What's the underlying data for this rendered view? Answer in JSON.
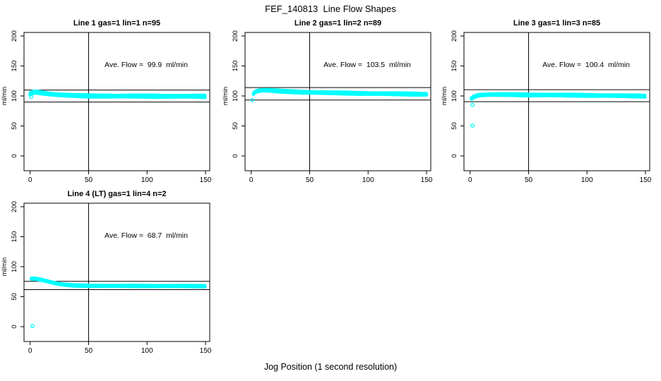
{
  "chart_data": {
    "type": "scatter",
    "title": "FEF_140813  Line Flow Shapes",
    "xlabel": "Jog Position (1 second resolution)",
    "ylabel": "ml/min",
    "point_color": "#00ffff",
    "axis_color": "#000000",
    "background_color": "#ffffff",
    "x_ticks": [
      0,
      50,
      100,
      150
    ],
    "y_ticks": [
      0,
      50,
      100,
      150,
      200
    ],
    "xlim": [
      -6,
      156
    ],
    "ylim": [
      -25,
      206
    ],
    "grid": false,
    "legend": "none",
    "panels": [
      {
        "title": "Line 1 gas=1 lin=1 n=95",
        "annotation": "Ave. Flow =  99.9  ml/min",
        "ave_flow": 99.9,
        "units": "ml/min",
        "n": 95,
        "gas": 1,
        "lin": 1,
        "limit_lines": [
          109.9,
          89.9
        ],
        "vline_x": 50,
        "profile": [
          [
            0,
            103.5
          ],
          [
            2,
            106
          ],
          [
            5,
            106.5
          ],
          [
            10,
            105.2
          ],
          [
            15,
            103.8
          ],
          [
            22,
            102.3
          ],
          [
            30,
            101.2
          ],
          [
            45,
            100.2
          ],
          [
            60,
            99.9
          ],
          [
            90,
            99.7
          ],
          [
            120,
            99.5
          ],
          [
            150,
            99.3
          ]
        ],
        "band_halfwidth": 1.9,
        "outliers": [
          [
            1,
            98.5
          ]
        ]
      },
      {
        "title": "Line 2 gas=1 lin=2 n=89",
        "annotation": "Ave. Flow =  103.5  ml/min",
        "ave_flow": 103.5,
        "units": "ml/min",
        "n": 89,
        "gas": 1,
        "lin": 2,
        "limit_lines": [
          113.9,
          93.2
        ],
        "vline_x": 50,
        "profile": [
          [
            2,
            104
          ],
          [
            4,
            107.5
          ],
          [
            7,
            109
          ],
          [
            12,
            109.6
          ],
          [
            18,
            108.8
          ],
          [
            28,
            107.6
          ],
          [
            45,
            106.3
          ],
          [
            65,
            105.3
          ],
          [
            90,
            104.4
          ],
          [
            120,
            103.6
          ],
          [
            150,
            102.9
          ]
        ],
        "band_halfwidth": 1.7,
        "outliers": [
          [
            1,
            93
          ]
        ]
      },
      {
        "title": "Line 3 gas=1 lin=3 n=85",
        "annotation": "Ave. Flow =  100.4  ml/min",
        "ave_flow": 100.4,
        "units": "ml/min",
        "n": 85,
        "gas": 1,
        "lin": 3,
        "limit_lines": [
          110.4,
          90.4
        ],
        "vline_x": 50,
        "profile": [
          [
            1,
            95.5
          ],
          [
            3,
            98.5
          ],
          [
            6,
            100.8
          ],
          [
            10,
            101.8
          ],
          [
            18,
            102.3
          ],
          [
            30,
            102.2
          ],
          [
            50,
            101.8
          ],
          [
            75,
            101.4
          ],
          [
            100,
            101
          ],
          [
            125,
            100.5
          ],
          [
            150,
            99.7
          ]
        ],
        "band_halfwidth": 1.6,
        "outliers": [
          [
            2,
            85
          ],
          [
            2,
            50.5
          ]
        ]
      },
      {
        "title": "Line 4 (LT) gas=1 lin=4 n=2",
        "annotation": "Ave. Flow =  68.7  ml/min",
        "ave_flow": 68.7,
        "units": "ml/min",
        "n": 2,
        "gas": 1,
        "lin": 4,
        "limit_lines": [
          75.6,
          61.8
        ],
        "vline_x": 50,
        "profile": [
          [
            1,
            80
          ],
          [
            4,
            80.2
          ],
          [
            8,
            78.8
          ],
          [
            12,
            77
          ],
          [
            16,
            75
          ],
          [
            20,
            73
          ],
          [
            25,
            71
          ],
          [
            30,
            69.8
          ],
          [
            38,
            68.7
          ],
          [
            50,
            68.2
          ],
          [
            70,
            68
          ],
          [
            100,
            67.9
          ],
          [
            130,
            67.7
          ],
          [
            150,
            67.5
          ]
        ],
        "band_halfwidth": 1.2,
        "outliers": [
          [
            2,
            1
          ]
        ]
      }
    ]
  }
}
